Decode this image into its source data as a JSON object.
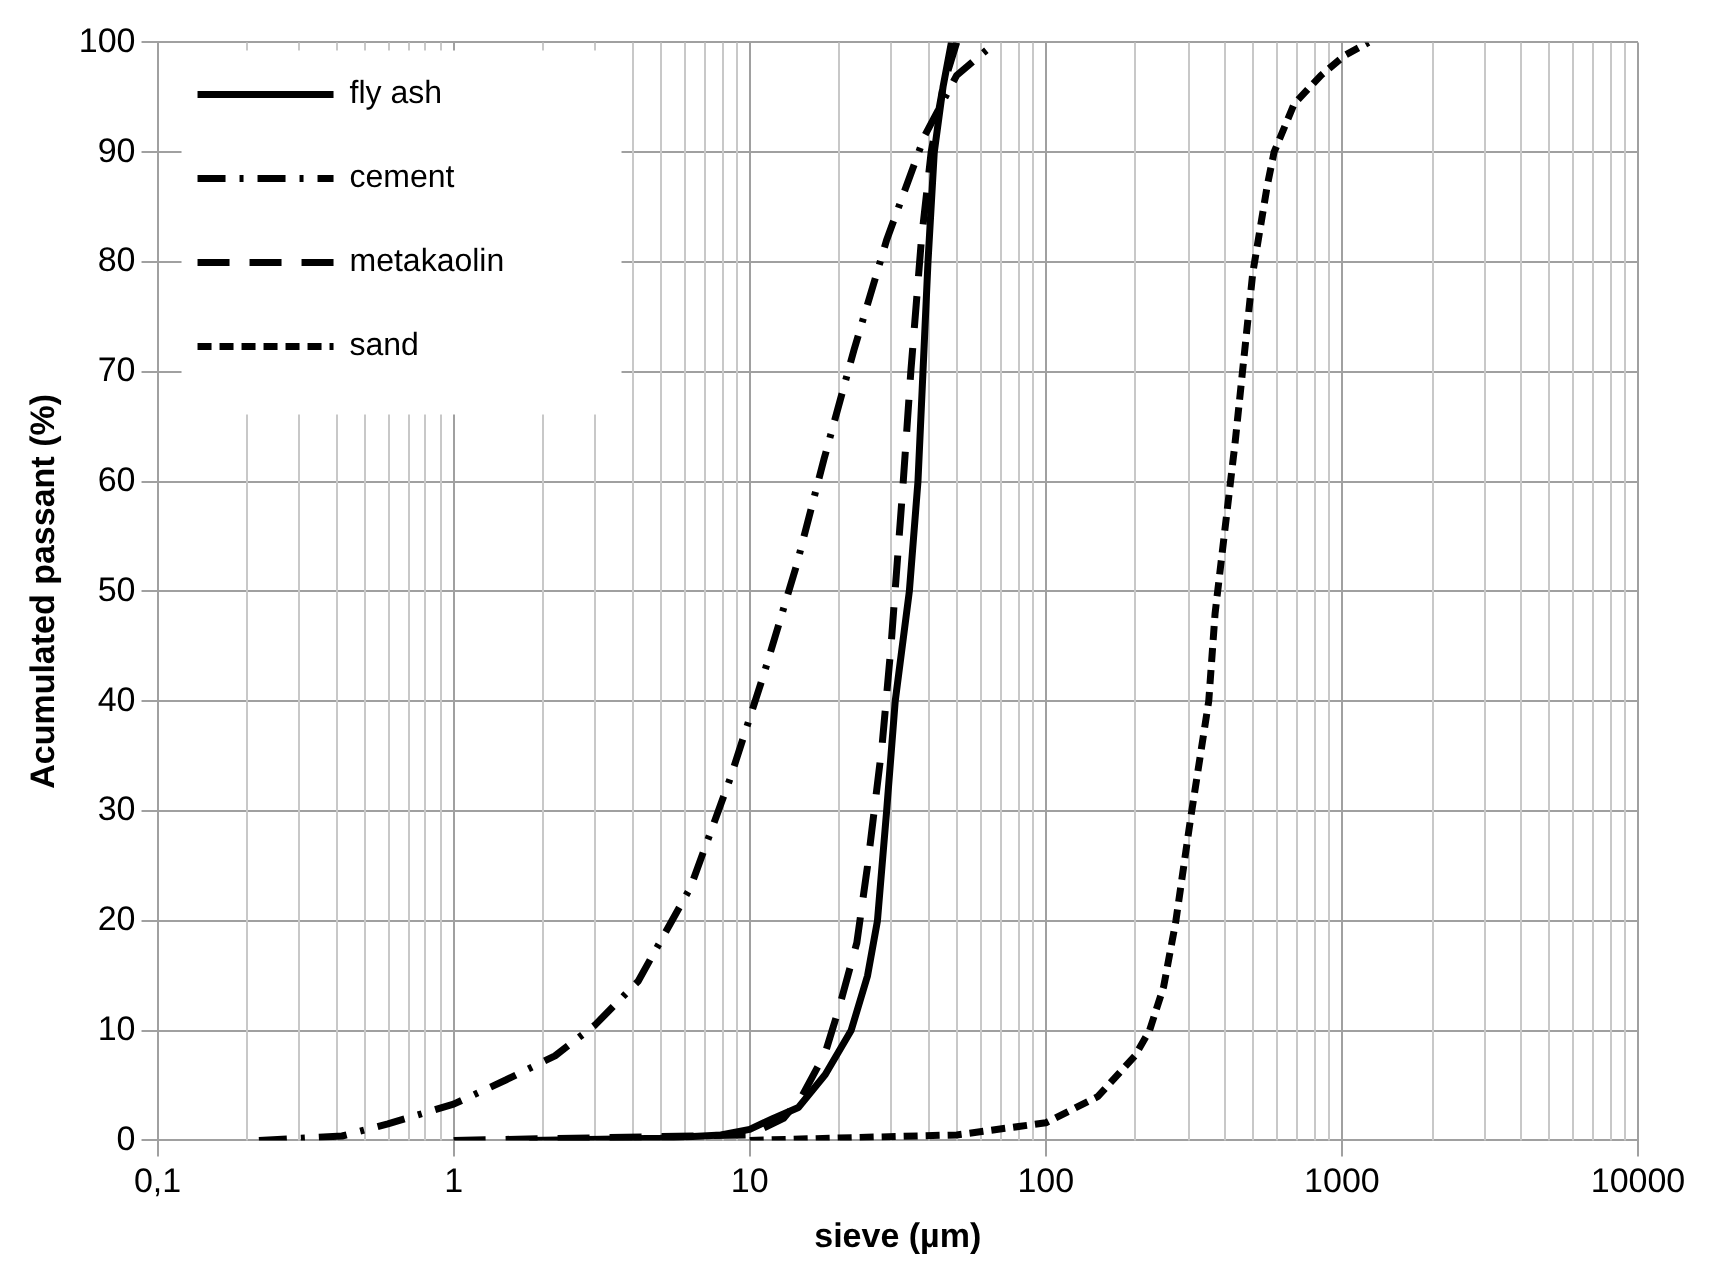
{
  "chart_data": {
    "type": "line",
    "xlabel": "sieve (µm)",
    "ylabel": "Acumulated passant (%)",
    "log": "x",
    "grid": true,
    "legend": "top left",
    "marker": "none",
    "xlim": [
      0.1,
      10000
    ],
    "xticks": [
      {
        "value": 0.1,
        "label": "0,1"
      },
      1,
      10,
      100,
      1000,
      10000
    ],
    "ylim": [
      0,
      100
    ],
    "yticks": [
      0,
      10,
      20,
      30,
      40,
      50,
      60,
      70,
      80,
      90,
      100
    ],
    "series": [
      {
        "name": "fly ash",
        "color": "#000000",
        "line_style": "solid",
        "x": [
          1.8,
          5,
          8,
          10,
          12,
          14.6,
          18,
          22,
          25,
          27,
          29,
          31,
          34.6,
          37,
          40,
          42,
          45,
          48
        ],
        "values": [
          0,
          0.2,
          0.5,
          1,
          2,
          3,
          6,
          10,
          15,
          20,
          30,
          40,
          50,
          60,
          80,
          90,
          96,
          100
        ]
      },
      {
        "name": "cement",
        "color": "#000000",
        "line_style": "dashdot",
        "x": [
          0.22,
          0.42,
          0.6,
          1,
          1.5,
          2.2,
          3,
          4.2,
          6.3,
          8.6,
          11.2,
          14.4,
          17.8,
          22.5,
          29,
          39,
          50,
          65
        ],
        "values": [
          0,
          0.4,
          1.5,
          3.3,
          5.5,
          7.7,
          10.5,
          14.5,
          23,
          33,
          42.6,
          52.4,
          62,
          72,
          82,
          91.5,
          97,
          99.6
        ]
      },
      {
        "name": "metakaolin",
        "color": "#000000",
        "line_style": "dashed",
        "x": [
          1,
          10,
          13,
          15,
          18,
          20,
          23,
          25,
          28,
          30,
          33,
          35,
          38,
          41,
          45,
          50
        ],
        "values": [
          0,
          0.5,
          2,
          4,
          8,
          12,
          18,
          25,
          36,
          45,
          60,
          70,
          82,
          90,
          96,
          100
        ]
      },
      {
        "name": "sand",
        "color": "#000000",
        "line_style": "short_dashed",
        "x": [
          10,
          50,
          100,
          150,
          200,
          224,
          250,
          275,
          309,
          355,
          373,
          436,
          500,
          560,
          590,
          690,
          850,
          1020,
          1230
        ],
        "values": [
          0,
          0.5,
          1.6,
          4,
          7.7,
          10,
          14,
          20,
          29.5,
          40,
          48,
          63.6,
          79,
          87,
          90,
          94.4,
          97,
          98.8,
          100
        ]
      }
    ]
  }
}
